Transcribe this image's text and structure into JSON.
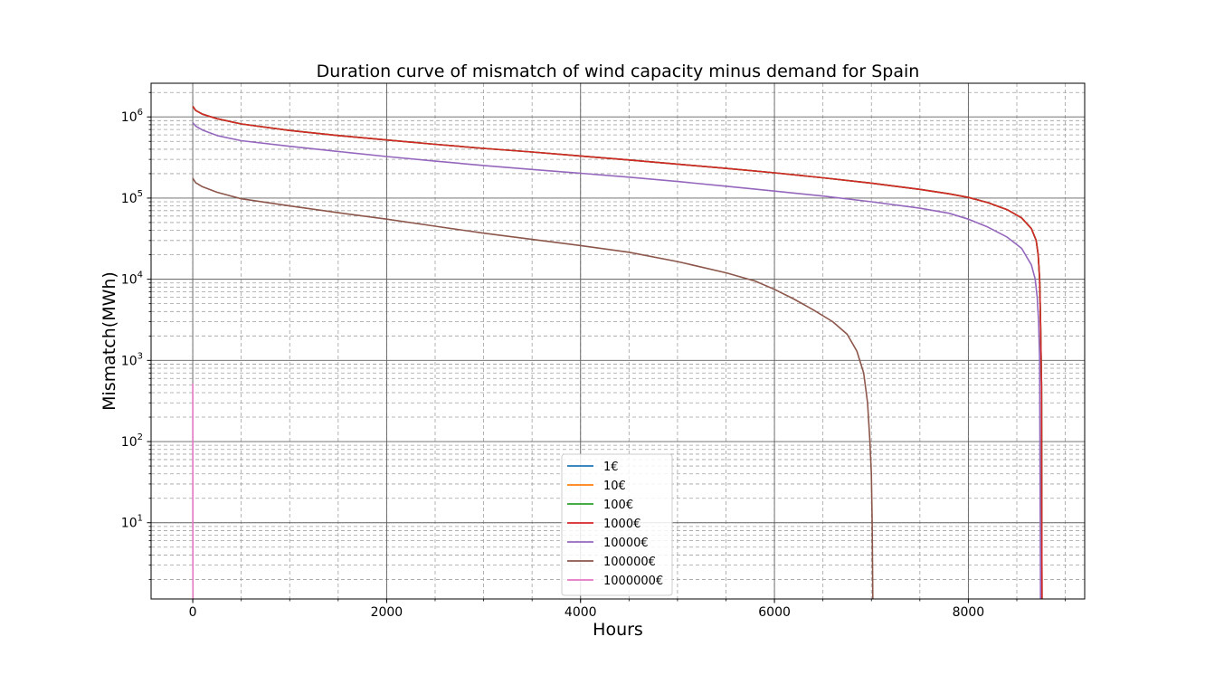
{
  "chart_data": {
    "type": "line",
    "title": "Duration curve of mismatch of wind capacity minus demand for Spain",
    "xlabel": "Hours",
    "ylabel": "Mismatch(MWh)",
    "xlim": [
      -430,
      9200
    ],
    "ylim": [
      1.15,
      2600000
    ],
    "yscale": "log",
    "x_ticks": [
      0,
      2000,
      4000,
      6000,
      8000
    ],
    "y_ticks": [
      {
        "value": 10,
        "base": "10",
        "exp": "1"
      },
      {
        "value": 100,
        "base": "10",
        "exp": "2"
      },
      {
        "value": 1000,
        "base": "10",
        "exp": "3"
      },
      {
        "value": 10000,
        "base": "10",
        "exp": "4"
      },
      {
        "value": 100000,
        "base": "10",
        "exp": "5"
      },
      {
        "value": 1000000,
        "base": "10",
        "exp": "6"
      }
    ],
    "grid": {
      "major": true,
      "minor": true
    },
    "legend_position": "lower-center",
    "series": [
      {
        "name": "1€",
        "color": "#1f77b4",
        "x": [
          0,
          30,
          100,
          250,
          500,
          1000,
          1500,
          2000,
          2500,
          3000,
          3500,
          4000,
          4500,
          5000,
          5500,
          6000,
          6500,
          7000,
          7500,
          7800,
          8000,
          8200,
          8400,
          8550,
          8650,
          8700,
          8720,
          8735,
          8745,
          8755,
          8760
        ],
        "y": [
          1350000,
          1200000,
          1080000,
          950000,
          820000,
          680000,
          590000,
          520000,
          460000,
          410000,
          370000,
          330000,
          295000,
          262000,
          232000,
          205000,
          178000,
          153000,
          128000,
          113000,
          102000,
          88000,
          72000,
          57000,
          42000,
          30000,
          20000,
          10000,
          3000,
          500,
          1.15
        ]
      },
      {
        "name": "10€",
        "color": "#ff7f0e",
        "x": [
          0,
          30,
          100,
          250,
          500,
          1000,
          1500,
          2000,
          2500,
          3000,
          3500,
          4000,
          4500,
          5000,
          5500,
          6000,
          6500,
          7000,
          7500,
          7800,
          8000,
          8200,
          8400,
          8550,
          8650,
          8700,
          8720,
          8735,
          8745,
          8755,
          8760
        ],
        "y": [
          1350000,
          1200000,
          1080000,
          950000,
          820000,
          680000,
          590000,
          520000,
          460000,
          410000,
          370000,
          330000,
          295000,
          262000,
          232000,
          205000,
          178000,
          153000,
          128000,
          113000,
          102000,
          88000,
          72000,
          57000,
          42000,
          30000,
          20000,
          10000,
          3000,
          500,
          1.15
        ]
      },
      {
        "name": "100€",
        "color": "#2ca02c",
        "x": [
          0,
          30,
          100,
          250,
          500,
          1000,
          1500,
          2000,
          2500,
          3000,
          3500,
          4000,
          4500,
          5000,
          5500,
          6000,
          6500,
          7000,
          7500,
          7800,
          8000,
          8200,
          8400,
          8550,
          8650,
          8700,
          8720,
          8735,
          8745,
          8755,
          8760
        ],
        "y": [
          1350000,
          1200000,
          1080000,
          950000,
          820000,
          680000,
          590000,
          520000,
          460000,
          410000,
          370000,
          330000,
          295000,
          262000,
          232000,
          205000,
          178000,
          153000,
          128000,
          113000,
          102000,
          88000,
          72000,
          57000,
          42000,
          30000,
          20000,
          10000,
          3000,
          500,
          1.15
        ]
      },
      {
        "name": "1000€",
        "color": "#d62728",
        "x": [
          0,
          30,
          100,
          250,
          500,
          1000,
          1500,
          2000,
          2500,
          3000,
          3500,
          4000,
          4500,
          5000,
          5500,
          6000,
          6500,
          7000,
          7500,
          7800,
          8000,
          8200,
          8400,
          8550,
          8650,
          8700,
          8720,
          8735,
          8745,
          8755,
          8760
        ],
        "y": [
          1350000,
          1200000,
          1080000,
          950000,
          820000,
          680000,
          590000,
          520000,
          460000,
          410000,
          370000,
          330000,
          295000,
          262000,
          232000,
          205000,
          178000,
          153000,
          128000,
          113000,
          102000,
          88000,
          72000,
          57000,
          42000,
          30000,
          20000,
          10000,
          3000,
          500,
          1.15
        ]
      },
      {
        "name": "10000€",
        "color": "#9467bd",
        "x": [
          0,
          30,
          100,
          250,
          500,
          1000,
          1500,
          2000,
          2500,
          3000,
          3500,
          4000,
          4500,
          5000,
          5500,
          6000,
          6500,
          7000,
          7500,
          7800,
          8000,
          8200,
          8400,
          8550,
          8650,
          8690,
          8710,
          8725,
          8735,
          8745
        ],
        "y": [
          850000,
          770000,
          690000,
          590000,
          510000,
          435000,
          375000,
          325000,
          285000,
          252000,
          225000,
          202000,
          181000,
          160000,
          140000,
          122000,
          106000,
          90000,
          75000,
          65000,
          55000,
          44000,
          33000,
          24000,
          15000,
          10000,
          6000,
          3000,
          1000,
          1.15
        ]
      },
      {
        "name": "100000€",
        "color": "#8c564b",
        "x": [
          0,
          30,
          100,
          250,
          500,
          1000,
          1500,
          2000,
          2500,
          3000,
          3500,
          4000,
          4500,
          5000,
          5500,
          5800,
          6000,
          6200,
          6400,
          6600,
          6750,
          6850,
          6920,
          6960,
          6985,
          7000,
          7008,
          7015
        ],
        "y": [
          175000,
          155000,
          138000,
          118000,
          98000,
          80000,
          66000,
          55000,
          45000,
          37000,
          31000,
          26000,
          21500,
          16500,
          12000,
          9500,
          7500,
          5700,
          4200,
          3000,
          2100,
          1300,
          700,
          300,
          100,
          40,
          10,
          1.15
        ]
      },
      {
        "name": "1000000€",
        "color": "#e377c2",
        "x": [
          0,
          1,
          2
        ],
        "y": [
          520,
          5,
          1.15
        ]
      }
    ]
  }
}
